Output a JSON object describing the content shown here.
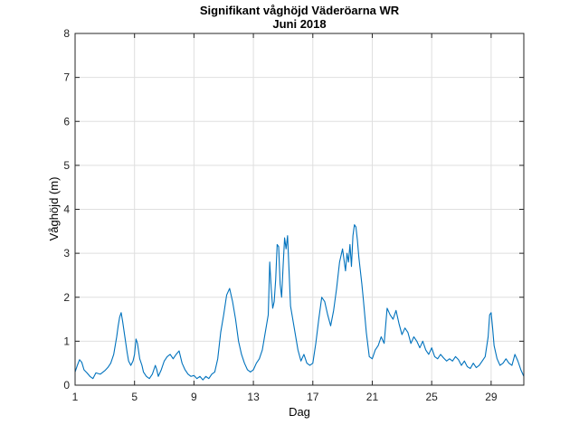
{
  "chart_data": {
    "type": "line",
    "title": "Signifikant våghöjd Väderöarna WR",
    "subtitle": "Juni 2018",
    "xlabel": "Dag",
    "ylabel": "Våghöjd (m)",
    "xlim": [
      1,
      31.2
    ],
    "ylim": [
      0,
      8
    ],
    "xticks": [
      1,
      5,
      9,
      13,
      17,
      21,
      25,
      29
    ],
    "yticks": [
      0,
      1,
      2,
      3,
      4,
      5,
      6,
      7,
      8
    ],
    "grid": true,
    "line_color": "#0072bd",
    "series": [
      {
        "name": "Signifikant våghöjd",
        "x": [
          1.0,
          1.15,
          1.3,
          1.45,
          1.6,
          1.8,
          2.0,
          2.2,
          2.4,
          2.7,
          3.0,
          3.2,
          3.4,
          3.6,
          3.8,
          3.9,
          4.0,
          4.1,
          4.2,
          4.35,
          4.5,
          4.6,
          4.75,
          4.9,
          5.0,
          5.1,
          5.2,
          5.35,
          5.5,
          5.6,
          5.8,
          6.0,
          6.2,
          6.4,
          6.5,
          6.6,
          6.8,
          7.0,
          7.2,
          7.4,
          7.6,
          7.8,
          8.0,
          8.2,
          8.4,
          8.6,
          8.8,
          9.0,
          9.2,
          9.4,
          9.6,
          9.8,
          10.0,
          10.2,
          10.4,
          10.6,
          10.8,
          11.0,
          11.2,
          11.4,
          11.6,
          11.8,
          12.0,
          12.2,
          12.4,
          12.6,
          12.8,
          13.0,
          13.2,
          13.4,
          13.6,
          13.8,
          14.0,
          14.1,
          14.2,
          14.3,
          14.4,
          14.5,
          14.6,
          14.7,
          14.8,
          14.9,
          15.0,
          15.1,
          15.2,
          15.3,
          15.4,
          15.5,
          15.6,
          15.8,
          16.0,
          16.2,
          16.4,
          16.6,
          16.8,
          17.0,
          17.2,
          17.4,
          17.6,
          17.8,
          18.0,
          18.2,
          18.4,
          18.6,
          18.8,
          19.0,
          19.2,
          19.3,
          19.4,
          19.5,
          19.6,
          19.7,
          19.8,
          19.9,
          20.0,
          20.1,
          20.2,
          20.3,
          20.4,
          20.6,
          20.8,
          21.0,
          21.2,
          21.4,
          21.6,
          21.8,
          22.0,
          22.2,
          22.4,
          22.6,
          22.8,
          23.0,
          23.2,
          23.4,
          23.6,
          23.8,
          24.0,
          24.2,
          24.4,
          24.6,
          24.8,
          25.0,
          25.2,
          25.4,
          25.6,
          25.8,
          26.0,
          26.2,
          26.4,
          26.6,
          26.8,
          27.0,
          27.2,
          27.4,
          27.6,
          27.8,
          28.0,
          28.2,
          28.4,
          28.6,
          28.8,
          28.9,
          29.0,
          29.1,
          29.2,
          29.4,
          29.6,
          29.8,
          30.0,
          30.2,
          30.4,
          30.6,
          30.8,
          31.0,
          31.2
        ],
        "y": [
          0.3,
          0.45,
          0.58,
          0.52,
          0.35,
          0.28,
          0.2,
          0.15,
          0.28,
          0.25,
          0.33,
          0.4,
          0.5,
          0.7,
          1.1,
          1.35,
          1.55,
          1.65,
          1.45,
          1.1,
          0.75,
          0.55,
          0.45,
          0.55,
          0.7,
          1.05,
          0.95,
          0.6,
          0.45,
          0.3,
          0.2,
          0.15,
          0.25,
          0.45,
          0.35,
          0.2,
          0.35,
          0.55,
          0.65,
          0.7,
          0.6,
          0.7,
          0.78,
          0.5,
          0.35,
          0.25,
          0.2,
          0.22,
          0.15,
          0.2,
          0.12,
          0.2,
          0.15,
          0.25,
          0.3,
          0.6,
          1.2,
          1.6,
          2.05,
          2.2,
          1.9,
          1.5,
          1.0,
          0.7,
          0.5,
          0.35,
          0.3,
          0.35,
          0.5,
          0.6,
          0.8,
          1.2,
          1.6,
          2.8,
          2.2,
          1.75,
          1.9,
          2.4,
          3.2,
          3.15,
          2.3,
          2.0,
          2.7,
          3.35,
          3.1,
          3.4,
          2.6,
          1.8,
          1.6,
          1.2,
          0.8,
          0.55,
          0.7,
          0.5,
          0.45,
          0.5,
          0.95,
          1.5,
          2.0,
          1.9,
          1.6,
          1.35,
          1.7,
          2.2,
          2.8,
          3.1,
          2.6,
          3.0,
          2.8,
          3.2,
          2.7,
          3.4,
          3.65,
          3.6,
          3.3,
          2.9,
          2.6,
          2.3,
          1.95,
          1.2,
          0.65,
          0.6,
          0.8,
          0.9,
          1.1,
          0.95,
          1.75,
          1.6,
          1.5,
          1.7,
          1.4,
          1.15,
          1.3,
          1.2,
          0.95,
          1.1,
          1.0,
          0.85,
          1.0,
          0.8,
          0.7,
          0.85,
          0.65,
          0.6,
          0.7,
          0.62,
          0.55,
          0.6,
          0.55,
          0.65,
          0.58,
          0.45,
          0.55,
          0.42,
          0.38,
          0.5,
          0.4,
          0.45,
          0.55,
          0.65,
          1.1,
          1.6,
          1.65,
          1.3,
          0.9,
          0.6,
          0.45,
          0.5,
          0.6,
          0.5,
          0.45,
          0.7,
          0.55,
          0.35,
          0.2
        ]
      }
    ]
  }
}
